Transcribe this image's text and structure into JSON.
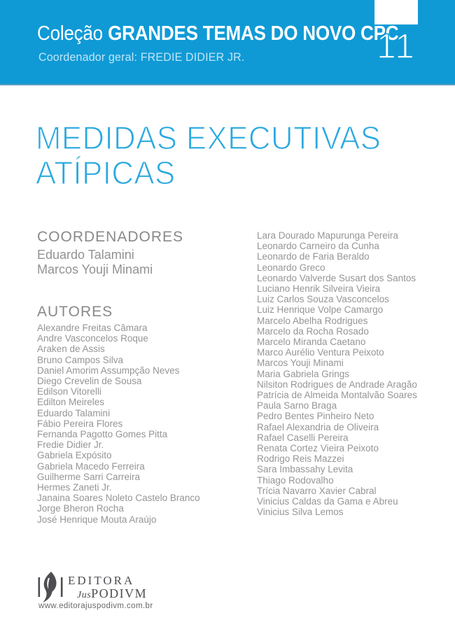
{
  "banner": {
    "series_prefix": "Coleção",
    "series_title": "GRANDES TEMAS DO NOVO CPC",
    "subtitle": "Coordenador geral: FREDIE DIDIER JR.",
    "volume_number": "11",
    "background_color": "#0f9ad6"
  },
  "title": {
    "line1": "MEDIDAS EXECUTIVAS",
    "line2": "ATÍPICAS",
    "color": "#2aa9e0"
  },
  "coordinators": {
    "heading": "COORDENADORES",
    "names": [
      "Eduardo Talamini",
      "Marcos Youji Minami"
    ]
  },
  "authors": {
    "heading": "AUTORES",
    "column1": [
      "Alexandre Freitas Câmara",
      "Andre Vasconcelos Roque",
      "Araken de Assis",
      "Bruno Campos Silva",
      "Daniel Amorim Assumpção Neves",
      "Diego Crevelin de Sousa",
      "Edilson Vitorelli",
      "Edilton Meireles",
      "Eduardo Talamini",
      "Fábio Pereira Flores",
      "Fernanda Pagotto Gomes Pitta",
      "Fredie Didier Jr.",
      "Gabriela Expósito",
      "Gabriela Macedo Ferreira",
      "Guilherme Sarri Carreira",
      "Hermes Zaneti Jr.",
      "Janaina Soares Noleto Castelo Branco",
      "Jorge Bheron Rocha",
      "José Henrique Mouta Araújo"
    ],
    "column2": [
      "Lara Dourado Mapurunga Pereira",
      "Leonardo Carneiro da Cunha",
      "Leonardo de Faria Beraldo",
      "Leonardo Greco",
      "Leonardo Valverde Susart dos Santos",
      "Luciano Henrik Silveira Vieira",
      "Luiz Carlos Souza Vasconcelos",
      "Luiz Henrique Volpe Camargo",
      "Marcelo Abelha Rodrigues",
      "Marcelo da Rocha Rosado",
      "Marcelo Miranda Caetano",
      "Marco Aurélio Ventura Peixoto",
      "Marcos Youji Minami",
      "Maria Gabriela Grings",
      "Nilsiton Rodrigues de Andrade Aragão",
      "Patrícia de Almeida Montalvão Soares",
      "Paula Sarno Braga",
      "Pedro Bentes Pinheiro Neto",
      "Rafael Alexandria de Oliveira",
      "Rafael Caselli Pereira",
      "Renata Cortez Vieira Peixoto",
      "Rodrigo Reis Mazzei",
      "Sara Imbassahy Levita",
      "Thiago Rodovalho",
      "Trícia Navarro Xavier Cabral",
      "Vinicius Caldas da Gama e Abreu",
      "Vinicius Silva Lemos"
    ]
  },
  "publisher": {
    "logo_icon": "flame-icon",
    "name_editora": "EDITORA",
    "name_jus": "Jus",
    "name_podivm": "PODIVM",
    "website": "www.editorajuspodivm.com.br",
    "logo_color": "#4d4d52"
  }
}
